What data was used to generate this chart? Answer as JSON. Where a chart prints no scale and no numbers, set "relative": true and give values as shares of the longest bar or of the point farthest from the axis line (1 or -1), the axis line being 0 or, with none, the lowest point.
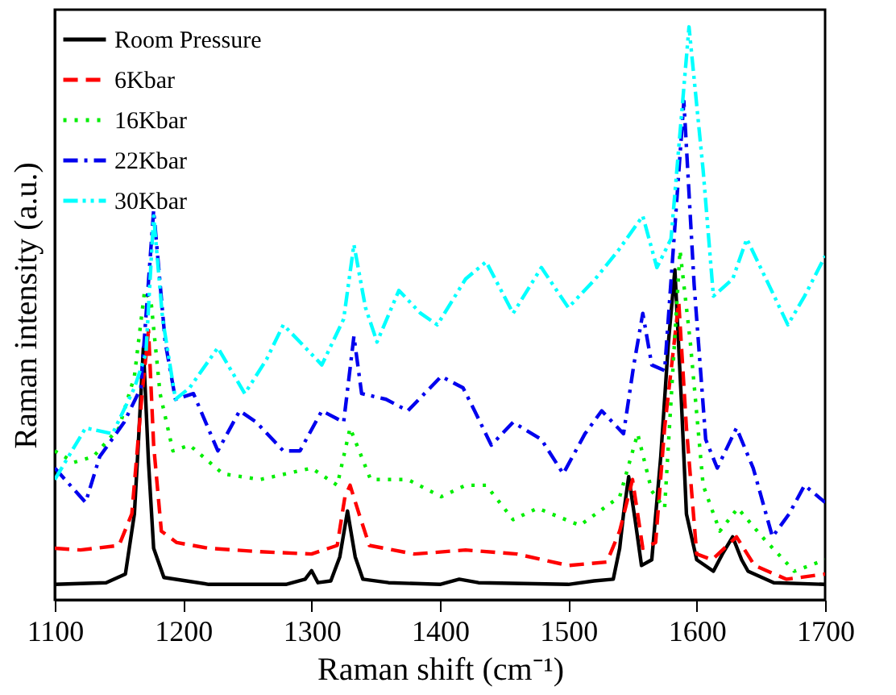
{
  "chart_data": {
    "type": "line",
    "xlabel": "Raman shift (cm⁻¹)",
    "ylabel": "Raman intensity (a.u.)",
    "relative": true,
    "xlim": [
      1100,
      1700
    ],
    "xticks": [
      1100,
      1200,
      1300,
      1400,
      1500,
      1600,
      1700
    ],
    "legend": "top left",
    "grid": false,
    "series": [
      {
        "name": "Room Pressure",
        "color": "#000000",
        "line_style": "solid",
        "x": [
          1100,
          1140,
          1155,
          1162,
          1165,
          1169,
          1173,
          1177,
          1185,
          1220,
          1280,
          1295,
          1300,
          1305,
          1315,
          1322,
          1328,
          1334,
          1340,
          1360,
          1400,
          1415,
          1430,
          1500,
          1520,
          1535,
          1540,
          1543,
          1547,
          1552,
          1557,
          1565,
          1572,
          1578,
          1583,
          1588,
          1592,
          1600,
          1613,
          1620,
          1628,
          1635,
          1640,
          1660,
          1700
        ],
        "values": [
          0.027,
          0.03,
          0.045,
          0.15,
          0.27,
          0.44,
          0.24,
          0.09,
          0.039,
          0.027,
          0.027,
          0.036,
          0.051,
          0.03,
          0.033,
          0.075,
          0.155,
          0.075,
          0.036,
          0.03,
          0.027,
          0.036,
          0.03,
          0.027,
          0.033,
          0.036,
          0.09,
          0.15,
          0.215,
          0.14,
          0.06,
          0.07,
          0.25,
          0.45,
          0.576,
          0.35,
          0.15,
          0.07,
          0.05,
          0.08,
          0.11,
          0.07,
          0.05,
          0.03,
          0.027
        ]
      },
      {
        "name": "6Kbar",
        "color": "#ff0000",
        "line_style": "dashed",
        "x": [
          1100,
          1120,
          1150,
          1160,
          1168,
          1173,
          1177,
          1183,
          1195,
          1220,
          1260,
          1300,
          1320,
          1326,
          1330,
          1337,
          1345,
          1380,
          1420,
          1460,
          1500,
          1530,
          1540,
          1550,
          1558,
          1568,
          1575,
          1586,
          1592,
          1600,
          1612,
          1631,
          1645,
          1670,
          1700
        ],
        "values": [
          0.09,
          0.087,
          0.095,
          0.15,
          0.36,
          0.47,
          0.27,
          0.12,
          0.1,
          0.09,
          0.084,
          0.08,
          0.095,
          0.18,
          0.2,
          0.15,
          0.095,
          0.08,
          0.087,
          0.08,
          0.06,
          0.066,
          0.12,
          0.21,
          0.09,
          0.1,
          0.3,
          0.52,
          0.3,
          0.08,
          0.07,
          0.11,
          0.06,
          0.036,
          0.045
        ]
      },
      {
        "name": "16Kbar",
        "color": "#00ee00",
        "line_style": "dotted",
        "x": [
          1100,
          1115,
          1130,
          1150,
          1162,
          1170,
          1175,
          1182,
          1192,
          1205,
          1231,
          1260,
          1280,
          1300,
          1320,
          1330,
          1346,
          1375,
          1401,
          1420,
          1436,
          1457,
          1476,
          1509,
          1540,
          1554,
          1565,
          1575,
          1587,
          1595,
          1605,
          1618,
          1632,
          1651,
          1676,
          1700
        ],
        "values": [
          0.26,
          0.24,
          0.25,
          0.3,
          0.39,
          0.54,
          0.52,
          0.36,
          0.26,
          0.27,
          0.22,
          0.21,
          0.22,
          0.23,
          0.2,
          0.3,
          0.21,
          0.21,
          0.18,
          0.2,
          0.2,
          0.14,
          0.16,
          0.13,
          0.18,
          0.29,
          0.19,
          0.16,
          0.61,
          0.45,
          0.2,
          0.12,
          0.16,
          0.11,
          0.05,
          0.07
        ]
      },
      {
        "name": "22Kbar",
        "color": "#0000ee",
        "line_style": "dashdot",
        "x": [
          1100,
          1124,
          1135,
          1154,
          1167,
          1177,
          1186,
          1194,
          1208,
          1227,
          1244,
          1257,
          1278,
          1291,
          1308,
          1325,
          1333,
          1339,
          1358,
          1375,
          1401,
          1418,
          1427,
          1440,
          1457,
          1479,
          1496,
          1513,
          1526,
          1543,
          1551,
          1558,
          1565,
          1575,
          1582,
          1590,
          1598,
          1607,
          1616,
          1631,
          1644,
          1659,
          1672,
          1684,
          1700
        ],
        "values": [
          0.23,
          0.17,
          0.25,
          0.31,
          0.37,
          0.68,
          0.45,
          0.35,
          0.36,
          0.26,
          0.33,
          0.31,
          0.26,
          0.26,
          0.33,
          0.31,
          0.46,
          0.36,
          0.35,
          0.33,
          0.39,
          0.37,
          0.33,
          0.27,
          0.31,
          0.28,
          0.22,
          0.29,
          0.33,
          0.29,
          0.41,
          0.5,
          0.41,
          0.4,
          0.62,
          0.87,
          0.55,
          0.28,
          0.23,
          0.3,
          0.23,
          0.11,
          0.15,
          0.2,
          0.17
        ]
      },
      {
        "name": "30Kbar",
        "color": "#00ffff",
        "line_style": "dashdotdot",
        "x": [
          1100,
          1124,
          1145,
          1162,
          1171,
          1177,
          1184,
          1194,
          1205,
          1227,
          1248,
          1265,
          1278,
          1291,
          1308,
          1325,
          1333,
          1342,
          1351,
          1368,
          1385,
          1398,
          1420,
          1436,
          1457,
          1479,
          1500,
          1521,
          1539,
          1558,
          1569,
          1580,
          1594,
          1605,
          1613,
          1628,
          1639,
          1654,
          1671,
          1684,
          1700
        ],
        "values": [
          0.21,
          0.3,
          0.29,
          0.37,
          0.43,
          0.67,
          0.49,
          0.35,
          0.37,
          0.44,
          0.36,
          0.42,
          0.48,
          0.45,
          0.41,
          0.49,
          0.62,
          0.51,
          0.45,
          0.54,
          0.5,
          0.48,
          0.56,
          0.59,
          0.5,
          0.58,
          0.51,
          0.56,
          0.61,
          0.67,
          0.58,
          0.63,
          1.0,
          0.75,
          0.53,
          0.56,
          0.63,
          0.56,
          0.48,
          0.53,
          0.6
        ]
      }
    ]
  }
}
